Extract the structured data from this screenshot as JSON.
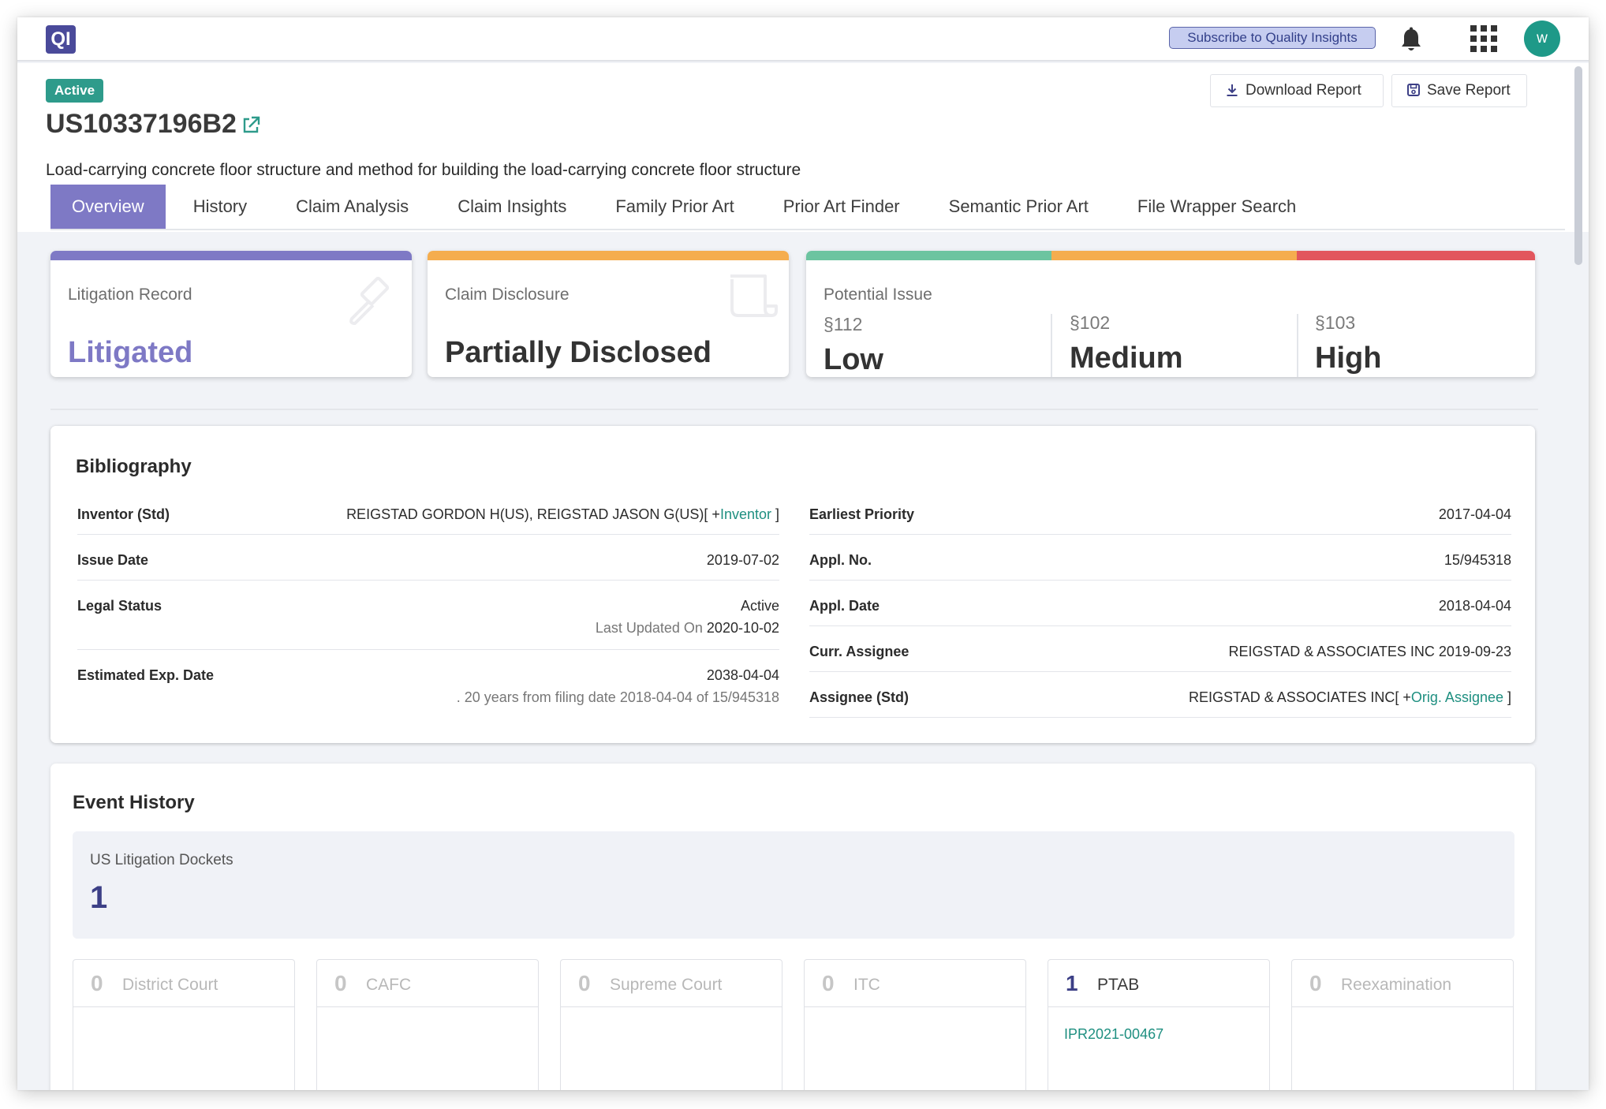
{
  "app": {
    "logo_text": "QI"
  },
  "topbar": {
    "subscribe_label": "Subscribe to Quality Insights",
    "avatar_initial": "w"
  },
  "patent": {
    "status_badge": "Active",
    "number": "US10337196B2",
    "title": "Load-carrying concrete floor structure and method for building the load-carrying concrete floor structure"
  },
  "actions": {
    "download_label": "Download Report",
    "save_label": "Save Report"
  },
  "tabs": [
    {
      "label": "Overview",
      "active": true
    },
    {
      "label": "History"
    },
    {
      "label": "Claim Analysis"
    },
    {
      "label": "Claim Insights"
    },
    {
      "label": "Family Prior Art"
    },
    {
      "label": "Prior Art Finder"
    },
    {
      "label": "Semantic Prior Art"
    },
    {
      "label": "File Wrapper Search"
    }
  ],
  "cards": {
    "litigation": {
      "label": "Litigation Record",
      "value": "Litigated",
      "accent": "#7e79c5"
    },
    "disclosure": {
      "label": "Claim Disclosure",
      "value": "Partially Disclosed",
      "accent": "#f5ad4e"
    },
    "potential": {
      "label": "Potential Issue",
      "issues": [
        {
          "section": "§112",
          "level": "Low",
          "color": "#6cc4a0"
        },
        {
          "section": "§102",
          "level": "Medium",
          "color": "#f5ad4e"
        },
        {
          "section": "§103",
          "level": "High",
          "color": "#e2565d"
        }
      ]
    }
  },
  "bibliography": {
    "title": "Bibliography",
    "left": {
      "inventor_key": "Inventor (Std)",
      "inventor_value": "REIGSTAD GORDON H(US), REIGSTAD JASON G(US)[ +",
      "inventor_link": "Inventor",
      "inventor_close": " ]",
      "issue_key": "Issue Date",
      "issue_value": "2019-07-02",
      "legal_key": "Legal Status",
      "legal_value": "Active",
      "legal_updated_prefix": "Last Updated On ",
      "legal_updated_date": "2020-10-02",
      "exp_key": "Estimated Exp. Date",
      "exp_value": "2038-04-04",
      "exp_note": ". 20 years from filing date 2018-04-04 of 15/945318"
    },
    "right": {
      "priority_key": "Earliest Priority",
      "priority_value": "2017-04-04",
      "appl_no_key": "Appl. No.",
      "appl_no_value": "15/945318",
      "appl_date_key": "Appl. Date",
      "appl_date_value": "2018-04-04",
      "curr_assignee_key": "Curr. Assignee",
      "curr_assignee_value": "REIGSTAD & ASSOCIATES INC 2019-09-23",
      "assignee_key": "Assignee (Std)",
      "assignee_value": "REIGSTAD & ASSOCIATES INC[ +",
      "assignee_link": "Orig. Assignee",
      "assignee_close": " ]"
    }
  },
  "events": {
    "title": "Event History",
    "dockets_label": "US Litigation Dockets",
    "dockets_count": "1",
    "courts": [
      {
        "count": "0",
        "name": "District Court"
      },
      {
        "count": "0",
        "name": "CAFC"
      },
      {
        "count": "0",
        "name": "Supreme Court"
      },
      {
        "count": "0",
        "name": "ITC"
      },
      {
        "count": "1",
        "name": "PTAB",
        "link": "IPR2021-00467"
      },
      {
        "count": "0",
        "name": "Reexamination"
      }
    ]
  }
}
